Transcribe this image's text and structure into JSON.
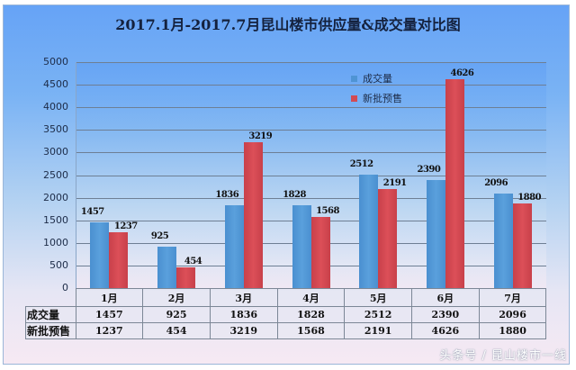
{
  "chart_data": {
    "type": "bar",
    "title": "2017.1月-2017.7月昆山楼市供应量&成交量对比图",
    "xlabel": "",
    "ylabel": "",
    "ylim": [
      0,
      5000
    ],
    "yticks": [
      0,
      500,
      1000,
      1500,
      2000,
      2500,
      3000,
      3500,
      4000,
      4500,
      5000
    ],
    "grid": true,
    "legend_position": "top-right inside plot",
    "categories": [
      "1月",
      "2月",
      "3月",
      "4月",
      "5月",
      "6月",
      "7月"
    ],
    "series": [
      {
        "name": "成交量",
        "color": "#4f94d4",
        "values": [
          1457,
          925,
          1836,
          1828,
          2512,
          2390,
          2096
        ]
      },
      {
        "name": "新批预售",
        "color": "#d24a53",
        "values": [
          1237,
          454,
          3219,
          1568,
          2191,
          4626,
          1880
        ]
      }
    ],
    "data_table": {
      "row_headers": [
        "成交量",
        "新批预售"
      ],
      "rows": [
        [
          1457,
          925,
          1836,
          1828,
          2512,
          2390,
          2096
        ],
        [
          1237,
          454,
          3219,
          1568,
          2191,
          4626,
          1880
        ]
      ]
    }
  },
  "watermark": "头条号 / 昆山楼市一线"
}
